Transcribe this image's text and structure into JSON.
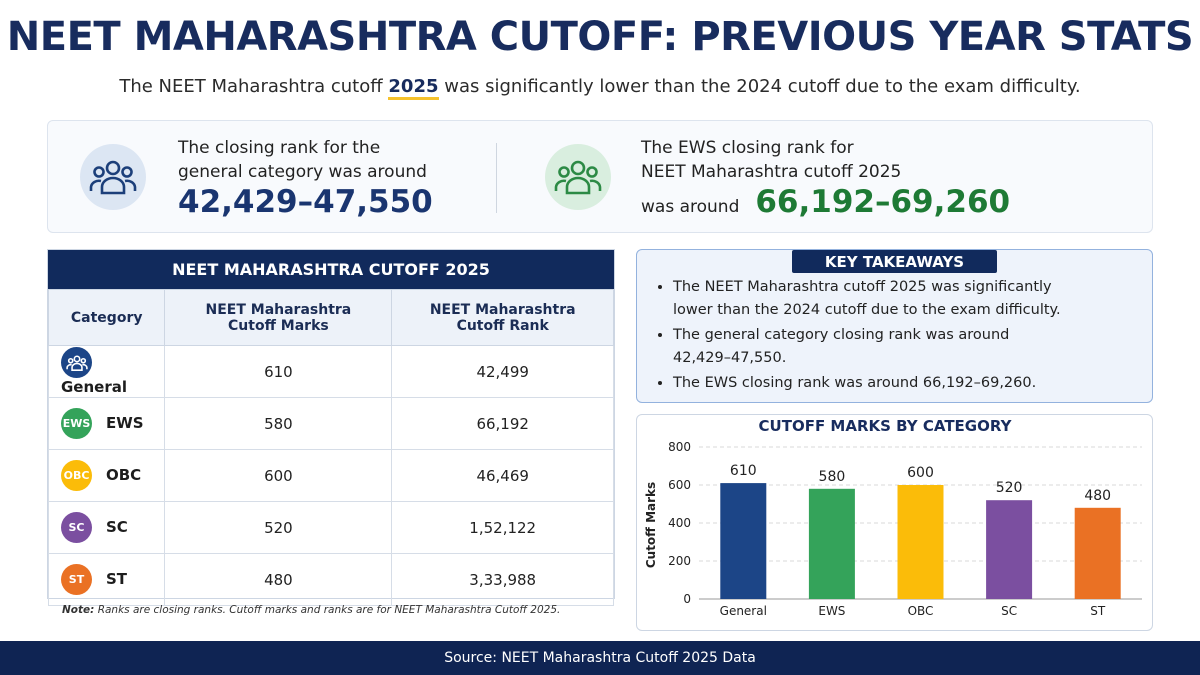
{
  "header": {
    "title": "NEET MAHARASHTRA CUTOFF: PREVIOUS YEAR STATS",
    "subtitle_before": "The NEET Maharashtra cutoff",
    "subtitle_highlight": "2025",
    "subtitle_after": "was significantly lower than the 2024 cutoff due to the exam difficulty."
  },
  "stats": [
    {
      "lines": [
        "The closing rank for the",
        "general category was around"
      ],
      "value": "42,429–47,550"
    },
    {
      "lines": [
        "The EWS closing rank for",
        "NEET Maharashtra cutoff 2025",
        "was around"
      ],
      "value": "66,192–69,260"
    }
  ],
  "table": {
    "title": "NEET MAHARASHTRA CUTOFF 2025",
    "columns": [
      "Category",
      "NEET Maharashtra Cutoff Marks",
      "NEET Maharashtra Cutoff Rank"
    ],
    "rows": [
      [
        "General",
        "610",
        "42,499"
      ],
      [
        "EWS",
        "580",
        "66,192"
      ],
      [
        "OBC",
        "600",
        "46,469"
      ],
      [
        "SC",
        "520",
        "1,52,122"
      ],
      [
        "ST",
        "480",
        "3,33,988"
      ]
    ],
    "badges": [
      "EWS",
      "OBC",
      "SC",
      "ST"
    ]
  },
  "note": {
    "label": "Note:",
    "text": "Ranks are closing ranks. Cutoff marks and ranks are for NEET Maharashtra Cutoff 2025."
  },
  "takeaways": {
    "title": "KEY TAKEAWAYS",
    "items": [
      "The NEET Maharashtra cutoff 2025 was significantly lower than the 2024 cutoff due to the exam difficulty.",
      "The general category closing rank was around 42,429–47,550.",
      "The EWS closing rank was around 66,192–69,260."
    ]
  },
  "chart_data": {
    "type": "bar",
    "title": "CUTOFF MARKS BY CATEGORY",
    "y_label": "Cutoff Marks",
    "categories": [
      "General",
      "EWS",
      "OBC",
      "SC",
      "ST"
    ],
    "values": [
      610,
      580,
      600,
      520,
      480
    ],
    "colors": [
      "#1c4587",
      "#34a35a",
      "#fbbc09",
      "#7b4fa0",
      "#ea7124"
    ],
    "ylim": [
      0,
      800
    ],
    "yticks": [
      0,
      200,
      400,
      600,
      800
    ],
    "grid": true
  },
  "footer": {
    "source": "Source: NEET Maharashtra Cutoff 2025 Data"
  }
}
